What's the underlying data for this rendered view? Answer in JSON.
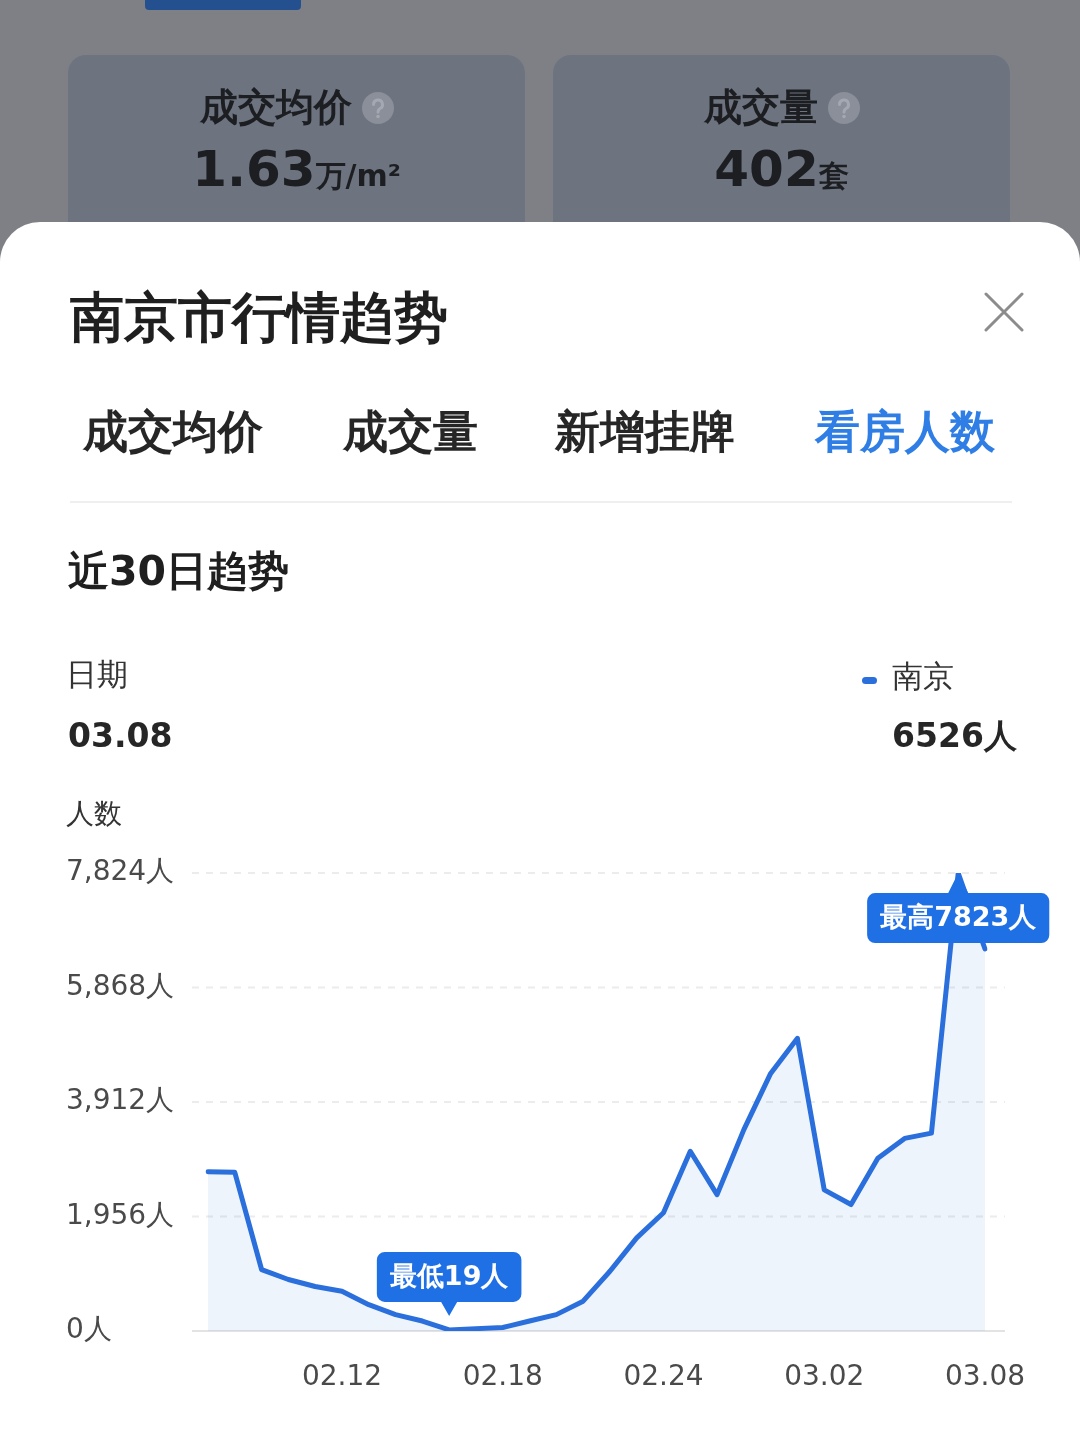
{
  "chart_data": {
    "type": "area",
    "title": "南京市行情趋势",
    "subtitle": "近30日趋势",
    "ylabel": "人数",
    "categories": [
      null,
      null,
      null,
      null,
      null,
      "02.12",
      null,
      null,
      null,
      null,
      null,
      "02.18",
      null,
      null,
      null,
      null,
      null,
      "02.24",
      null,
      null,
      null,
      null,
      null,
      "03.02",
      null,
      null,
      null,
      null,
      null,
      "03.08"
    ],
    "series": [
      {
        "name": "南京",
        "color": "#2a6fdb",
        "values": [
          2720,
          2710,
          1050,
          880,
          760,
          680,
          450,
          280,
          170,
          19,
          40,
          60,
          170,
          280,
          510,
          1020,
          1590,
          2020,
          3070,
          2330,
          3440,
          4400,
          5000,
          2410,
          2160,
          2950,
          3290,
          3380,
          7823,
          6526
        ]
      }
    ],
    "ylim": [
      0,
      7824
    ],
    "yticks": [
      {
        "value": 0,
        "label": "0人"
      },
      {
        "value": 1956,
        "label": "1,956人"
      },
      {
        "value": 3912,
        "label": "3,912人"
      },
      {
        "value": 5868,
        "label": "5,868人"
      },
      {
        "value": 7824,
        "label": "7,824人"
      }
    ],
    "grid": "y",
    "legend": "top right",
    "marker": "none",
    "annotations": [
      "成交均价",
      "1.63万/m²",
      "成交量",
      "402套",
      "成交均价",
      "成交量",
      "新增挂牌",
      "看房人数",
      "日期",
      "03.08",
      "6526人",
      {
        "text": "最低19人",
        "y": 19
      },
      {
        "text": "最高7823人",
        "y": 7823
      }
    ]
  }
}
